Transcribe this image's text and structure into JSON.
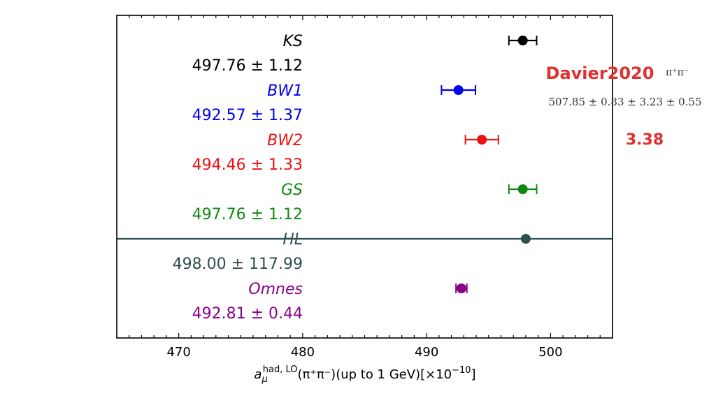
{
  "chart_data": {
    "type": "scatter",
    "xlim": [
      465,
      505
    ],
    "xticks": [
      470,
      480,
      490,
      500
    ],
    "xlabel": "a_μ^{had, LO}(π⁺π⁻)(up to 1 GeV)[×10⁻¹⁰]",
    "xlabel_parts": {
      "base": "a",
      "sub": "μ",
      "sup": "had, LO",
      "rest": "(π⁺π⁻)(up to 1 GeV)[×10",
      "exp": "−10",
      "end": "]"
    },
    "series": [
      {
        "name": "KS",
        "value_text": "497.76 ± 1.12",
        "x": 497.76,
        "err": 1.12,
        "color": "#000000"
      },
      {
        "name": "BW1",
        "value_text": "492.57 ± 1.37",
        "x": 492.57,
        "err": 1.37,
        "color": "#0000ee"
      },
      {
        "name": "BW2",
        "value_text": "494.46 ± 1.33",
        "x": 494.46,
        "err": 1.33,
        "color": "#ee1111"
      },
      {
        "name": "GS",
        "value_text": "497.76 ± 1.12",
        "x": 497.76,
        "err": 1.12,
        "color": "#118811"
      },
      {
        "name": "HL",
        "value_text": "498.00 ± 117.99",
        "x": 498.0,
        "err": 117.99,
        "color": "#2f4f4f"
      },
      {
        "name": "Omnes",
        "value_text": "492.81 ± 0.44",
        "x": 492.81,
        "err": 0.44,
        "color": "#880088"
      }
    ],
    "reference": {
      "name": "Davier2020",
      "channel": "π⁺π⁻",
      "value_text": "507.85 ± 0.83 ± 3.23 ± 0.55",
      "extra": "3.38",
      "name_color": "#e03030"
    }
  }
}
